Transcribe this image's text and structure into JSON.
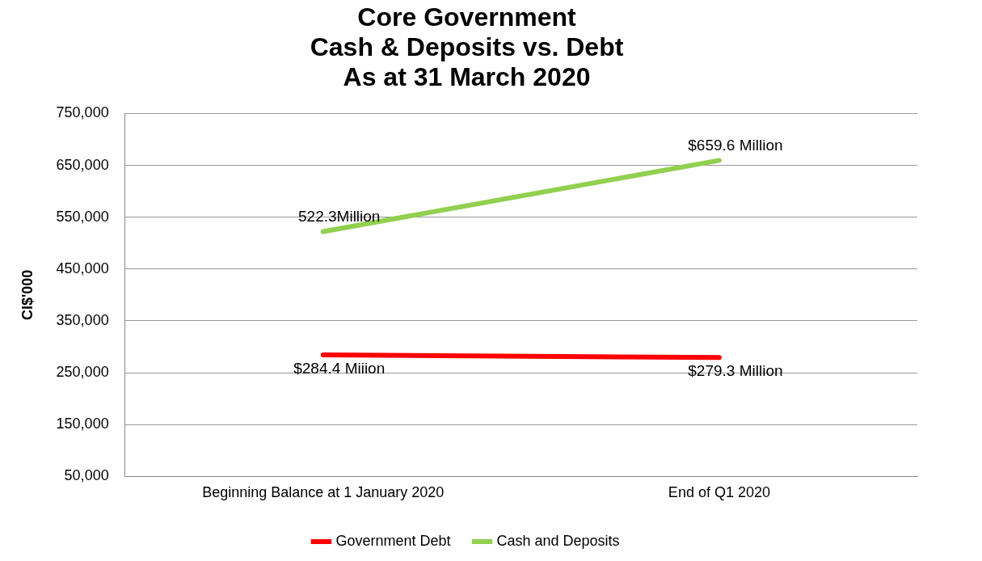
{
  "chart_data": {
    "type": "line",
    "title": "Core Government\nCash & Deposits vs. Debt\nAs at 31 March 2020",
    "ylabel": "CI$'000",
    "categories": [
      "Beginning Balance at 1 January 2020",
      "End of Q1 2020"
    ],
    "series": [
      {
        "name": "Government Debt",
        "color": "#ff0000",
        "values": [
          284400,
          279300
        ]
      },
      {
        "name": "Cash and Deposits",
        "color": "#92d050",
        "values": [
          522300,
          659600
        ]
      }
    ],
    "annotations": [
      {
        "text": "$284.4 Miiion",
        "x": "Beginning Balance at 1 January 2020",
        "y": 284400
      },
      {
        "text": "$279.3 Million",
        "x": "End of Q1 2020",
        "y": 279300
      },
      {
        "text": "522.3Million",
        "x": "Beginning Balance at 1 January 2020",
        "y": 522300
      },
      {
        "text": "$659.6 Million",
        "x": "End of Q1 2020",
        "y": 659600
      }
    ],
    "ylim": [
      50000,
      750000
    ],
    "yticks": [
      {
        "value": 50000,
        "label": "50,000"
      },
      {
        "value": 150000,
        "label": "150,000"
      },
      {
        "value": 250000,
        "label": "250,000"
      },
      {
        "value": 350000,
        "label": "350,000"
      },
      {
        "value": 450000,
        "label": "450,000"
      },
      {
        "value": 550000,
        "label": "550,000"
      },
      {
        "value": 650000,
        "label": "650,000"
      },
      {
        "value": 750000,
        "label": "750,000"
      }
    ],
    "grid": "y",
    "legend": "bottom",
    "marker": "none",
    "line_style": "solid"
  }
}
